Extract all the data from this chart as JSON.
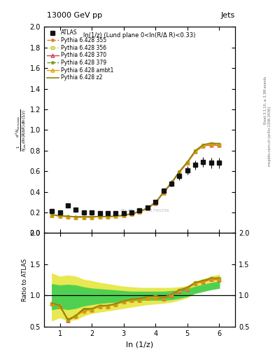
{
  "title_left": "13000 GeV pp",
  "title_right": "Jets",
  "panel_title": "ln(1/z) (Lund plane 0<ln(R/Δ R)<0.33)",
  "watermark": "ATLAS_2020_I1790256",
  "ylabel_main": "$\\frac{1}{N_{\\mathrm{jets}}}\\frac{d^2 N_{\\mathrm{emissions}}}{d\\ln(R/\\Delta R)\\,d\\ln(1/z)}$",
  "ylabel_ratio": "Ratio to ATLAS",
  "xlabel": "ln (1/z)",
  "right_label_top": "Rivet 3.1.10, ≥ 3.3M events",
  "right_label_bot": "mcplots.cern.ch [arXiv:1306.3436]",
  "ylim_main": [
    0.0,
    2.0
  ],
  "ylim_ratio": [
    0.5,
    2.0
  ],
  "xlim": [
    0.5,
    6.5
  ],
  "x_data": [
    0.75,
    1.0,
    1.25,
    1.5,
    1.75,
    2.0,
    2.25,
    2.5,
    2.75,
    3.0,
    3.25,
    3.5,
    3.75,
    4.0,
    4.25,
    4.5,
    4.75,
    5.0,
    5.25,
    5.5,
    5.75,
    6.0
  ],
  "atlas_y": [
    0.21,
    0.2,
    0.27,
    0.23,
    0.2,
    0.2,
    0.19,
    0.19,
    0.19,
    0.19,
    0.2,
    0.22,
    0.25,
    0.3,
    0.41,
    0.48,
    0.55,
    0.61,
    0.66,
    0.69,
    0.68,
    0.68
  ],
  "atlas_err": [
    0.015,
    0.015,
    0.02,
    0.015,
    0.012,
    0.012,
    0.012,
    0.012,
    0.012,
    0.012,
    0.012,
    0.015,
    0.015,
    0.018,
    0.025,
    0.03,
    0.035,
    0.04,
    0.045,
    0.05,
    0.05,
    0.05
  ],
  "py355_y": [
    0.175,
    0.165,
    0.16,
    0.155,
    0.155,
    0.155,
    0.158,
    0.158,
    0.163,
    0.17,
    0.185,
    0.205,
    0.24,
    0.29,
    0.39,
    0.48,
    0.59,
    0.68,
    0.79,
    0.845,
    0.86,
    0.855
  ],
  "py356_y": [
    0.175,
    0.165,
    0.16,
    0.155,
    0.155,
    0.155,
    0.158,
    0.158,
    0.163,
    0.17,
    0.185,
    0.205,
    0.24,
    0.295,
    0.395,
    0.485,
    0.595,
    0.685,
    0.795,
    0.85,
    0.865,
    0.86
  ],
  "py370_y": [
    0.175,
    0.165,
    0.16,
    0.155,
    0.155,
    0.155,
    0.158,
    0.158,
    0.163,
    0.17,
    0.185,
    0.205,
    0.24,
    0.29,
    0.39,
    0.48,
    0.59,
    0.68,
    0.79,
    0.845,
    0.855,
    0.85
  ],
  "py379_y": [
    0.175,
    0.165,
    0.16,
    0.155,
    0.155,
    0.155,
    0.158,
    0.158,
    0.163,
    0.17,
    0.185,
    0.205,
    0.24,
    0.293,
    0.393,
    0.483,
    0.593,
    0.683,
    0.793,
    0.848,
    0.862,
    0.857
  ],
  "py_ambt1_y": [
    0.175,
    0.165,
    0.16,
    0.155,
    0.155,
    0.155,
    0.158,
    0.158,
    0.163,
    0.17,
    0.185,
    0.205,
    0.24,
    0.292,
    0.392,
    0.482,
    0.592,
    0.682,
    0.792,
    0.847,
    0.862,
    0.857
  ],
  "py_z2_y": [
    0.178,
    0.168,
    0.163,
    0.158,
    0.158,
    0.158,
    0.16,
    0.16,
    0.165,
    0.173,
    0.188,
    0.208,
    0.245,
    0.297,
    0.397,
    0.488,
    0.598,
    0.69,
    0.8,
    0.858,
    0.873,
    0.868
  ],
  "ratio_355": [
    0.87,
    0.83,
    0.6,
    0.67,
    0.77,
    0.77,
    0.83,
    0.83,
    0.86,
    0.9,
    0.93,
    0.93,
    0.96,
    0.97,
    0.95,
    1.0,
    1.07,
    1.11,
    1.2,
    1.22,
    1.26,
    1.26
  ],
  "ratio_356": [
    0.87,
    0.83,
    0.6,
    0.67,
    0.77,
    0.77,
    0.83,
    0.83,
    0.86,
    0.9,
    0.93,
    0.93,
    0.96,
    0.98,
    0.96,
    1.01,
    1.08,
    1.12,
    1.21,
    1.23,
    1.27,
    1.27
  ],
  "ratio_370": [
    0.87,
    0.83,
    0.6,
    0.67,
    0.77,
    0.77,
    0.83,
    0.83,
    0.86,
    0.9,
    0.93,
    0.93,
    0.96,
    0.97,
    0.95,
    1.0,
    1.07,
    1.11,
    1.2,
    1.22,
    1.26,
    1.25
  ],
  "ratio_379": [
    0.87,
    0.83,
    0.6,
    0.67,
    0.77,
    0.77,
    0.83,
    0.83,
    0.86,
    0.9,
    0.93,
    0.93,
    0.96,
    0.98,
    0.96,
    1.01,
    1.08,
    1.12,
    1.2,
    1.23,
    1.27,
    1.26
  ],
  "ratio_ambt1": [
    0.87,
    0.83,
    0.62,
    0.67,
    0.75,
    0.77,
    0.83,
    0.83,
    0.86,
    0.9,
    0.93,
    0.93,
    0.96,
    0.97,
    0.96,
    1.01,
    1.08,
    1.12,
    1.2,
    1.23,
    1.27,
    1.26
  ],
  "ratio_z2": [
    0.88,
    0.84,
    0.61,
    0.68,
    0.79,
    0.79,
    0.84,
    0.84,
    0.87,
    0.91,
    0.94,
    0.95,
    0.98,
    0.99,
    0.97,
    1.02,
    1.09,
    1.13,
    1.21,
    1.24,
    1.28,
    1.28
  ],
  "band_yellow_lo": [
    0.6,
    0.65,
    0.6,
    0.62,
    0.68,
    0.72,
    0.74,
    0.76,
    0.78,
    0.8,
    0.82,
    0.84,
    0.86,
    0.87,
    0.88,
    0.9,
    0.93,
    0.97,
    1.05,
    1.1,
    1.15,
    1.18
  ],
  "band_yellow_hi": [
    1.35,
    1.3,
    1.32,
    1.3,
    1.25,
    1.23,
    1.2,
    1.18,
    1.16,
    1.14,
    1.13,
    1.12,
    1.12,
    1.12,
    1.12,
    1.12,
    1.13,
    1.15,
    1.22,
    1.26,
    1.3,
    1.33
  ],
  "band_green_lo": [
    0.78,
    0.8,
    0.78,
    0.8,
    0.84,
    0.86,
    0.88,
    0.89,
    0.9,
    0.91,
    0.92,
    0.93,
    0.93,
    0.93,
    0.93,
    0.94,
    0.96,
    0.99,
    1.04,
    1.07,
    1.1,
    1.12
  ],
  "band_green_hi": [
    1.18,
    1.16,
    1.17,
    1.16,
    1.13,
    1.11,
    1.1,
    1.09,
    1.08,
    1.07,
    1.06,
    1.06,
    1.06,
    1.06,
    1.06,
    1.07,
    1.08,
    1.1,
    1.14,
    1.17,
    1.2,
    1.22
  ],
  "color_355": "#e87830",
  "color_356": "#b8c830",
  "color_370": "#d04060",
  "color_379": "#70a020",
  "color_ambt1": "#e8a000",
  "color_z2": "#908010",
  "color_atlas": "#111111",
  "color_yellow_band": "#e8e850",
  "color_green_band": "#50d050"
}
